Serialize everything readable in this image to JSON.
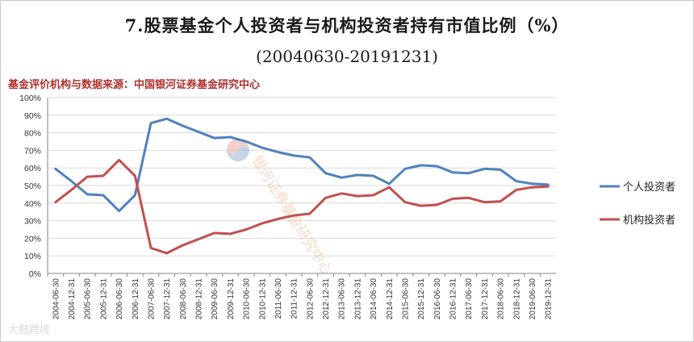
{
  "title": "7.股票基金个人投资者与机构投资者持有市值比例（%）",
  "subtitle": "(20040630-20191231)",
  "source": "基金评价机构与数据来源：中国银河证券基金研究中心",
  "watermark": "银河证券基金研究中心",
  "footer_mark": "大鼓跨境",
  "colors": {
    "individual": "#4f81bd",
    "institution": "#c0504d",
    "grid": "#d9d9d9",
    "axis": "#868686"
  },
  "chart_data": {
    "type": "line",
    "categories": [
      "2004-06-30",
      "2004-12-31",
      "2005-06-30",
      "2005-12-31",
      "2006-06-30",
      "2006-12-31",
      "2007-06-30",
      "2007-12-31",
      "2008-06-30",
      "2008-12-31",
      "2009-06-30",
      "2009-12-31",
      "2010-06-30",
      "2010-12-31",
      "2011-06-30",
      "2011-12-31",
      "2012-06-30",
      "2012-12-31",
      "2013-06-30",
      "2013-12-31",
      "2014-06-30",
      "2014-12-31",
      "2015-06-30",
      "2015-12-31",
      "2016-06-30",
      "2016-12-31",
      "2017-06-30",
      "2017-12-31",
      "2018-06-30",
      "2018-12-31",
      "2019-06-30",
      "2019-12-31"
    ],
    "series": [
      {
        "name": "个人投资者",
        "values": [
          59.5,
          52.5,
          45,
          44.5,
          35.5,
          44.5,
          85.5,
          88,
          84,
          80.5,
          77,
          77.5,
          75,
          71.5,
          69,
          67,
          66,
          57,
          54.5,
          56,
          55.5,
          51,
          59.5,
          61.5,
          61,
          57.5,
          57,
          59.5,
          59,
          52.5,
          51,
          50.5
        ]
      },
      {
        "name": "机构投资者",
        "values": [
          40.5,
          47.5,
          55,
          55.5,
          64.5,
          55.5,
          14.5,
          11.5,
          16,
          19.5,
          23,
          22.5,
          25,
          28.5,
          31,
          33,
          34,
          43,
          45.5,
          44,
          44.5,
          49,
          40.5,
          38.5,
          39,
          42.5,
          43,
          40.5,
          41,
          47.5,
          49,
          49.5
        ]
      }
    ],
    "yticks": [
      "100%",
      "90%",
      "80%",
      "70%",
      "60%",
      "50%",
      "40%",
      "30%",
      "20%",
      "10%",
      "0%"
    ],
    "ylim": [
      0,
      100
    ],
    "grid": true,
    "legend": "right"
  }
}
